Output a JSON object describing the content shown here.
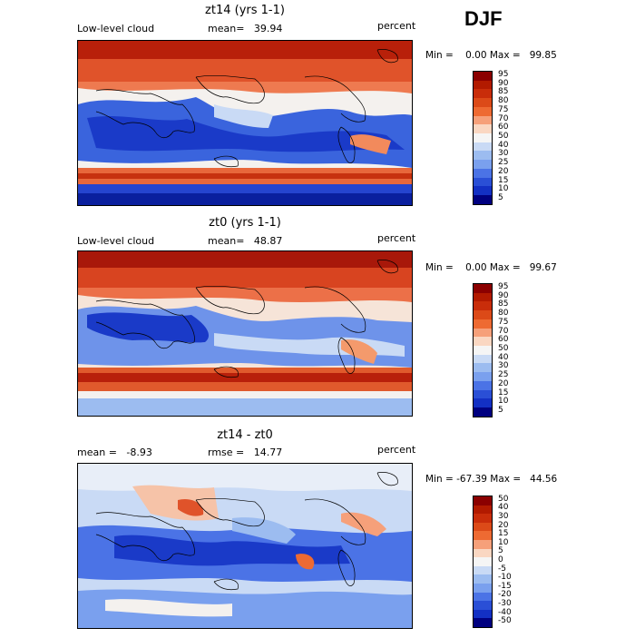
{
  "season": "DJF",
  "panels": [
    {
      "title": "zt14 (yrs 1-1)",
      "left": "Low-level cloud",
      "center": "mean=   39.94",
      "right": "percent",
      "minmax": "Min =    0.00 Max =   99.85",
      "levels": [
        "95",
        "90",
        "85",
        "80",
        "75",
        "70",
        "60",
        "50",
        "40",
        "30",
        "25",
        "20",
        "15",
        "10",
        "5"
      ],
      "colors": [
        "#8b0000",
        "#b21a00",
        "#c92d0a",
        "#dc4a18",
        "#ee6a32",
        "#f6a07a",
        "#fad7c2",
        "#f5f5f5",
        "#c9daf5",
        "#9cbcf0",
        "#7aa0ee",
        "#4b73e6",
        "#2a4fd6",
        "#1330c4",
        "#000080"
      ],
      "description": "Low-level cloud cover map, model zt14"
    },
    {
      "title": "zt0 (yrs 1-1)",
      "left": "Low-level cloud",
      "center": "mean=   48.87",
      "right": "percent",
      "minmax": "Min =    0.00 Max =   99.67",
      "levels": [
        "95",
        "90",
        "85",
        "80",
        "75",
        "70",
        "60",
        "50",
        "40",
        "30",
        "25",
        "20",
        "15",
        "10",
        "5"
      ],
      "colors": [
        "#8b0000",
        "#b21a00",
        "#c92d0a",
        "#dc4a18",
        "#ee6a32",
        "#f6a07a",
        "#fad7c2",
        "#f5f5f5",
        "#c9daf5",
        "#9cbcf0",
        "#7aa0ee",
        "#4b73e6",
        "#2a4fd6",
        "#1330c4",
        "#000080"
      ],
      "description": "Low-level cloud cover map, model zt0"
    },
    {
      "title": "zt14 - zt0",
      "left": "mean =   -8.93",
      "center": "rmse =   14.77",
      "right": "percent",
      "minmax": "Min = -67.39 Max =   44.56",
      "levels": [
        "50",
        "40",
        "30",
        "20",
        "15",
        "10",
        "5",
        "0",
        "-5",
        "-10",
        "-15",
        "-20",
        "-30",
        "-40",
        "-50"
      ],
      "colors": [
        "#8b0000",
        "#b21a00",
        "#c92d0a",
        "#dc4a18",
        "#ee6a32",
        "#f6a07a",
        "#fad7c2",
        "#f5f5f5",
        "#c9daf5",
        "#9cbcf0",
        "#7aa0ee",
        "#4b73e6",
        "#2a4fd6",
        "#1330c4",
        "#000080"
      ],
      "description": "Difference map of low-level cloud, zt14 minus zt0"
    }
  ]
}
